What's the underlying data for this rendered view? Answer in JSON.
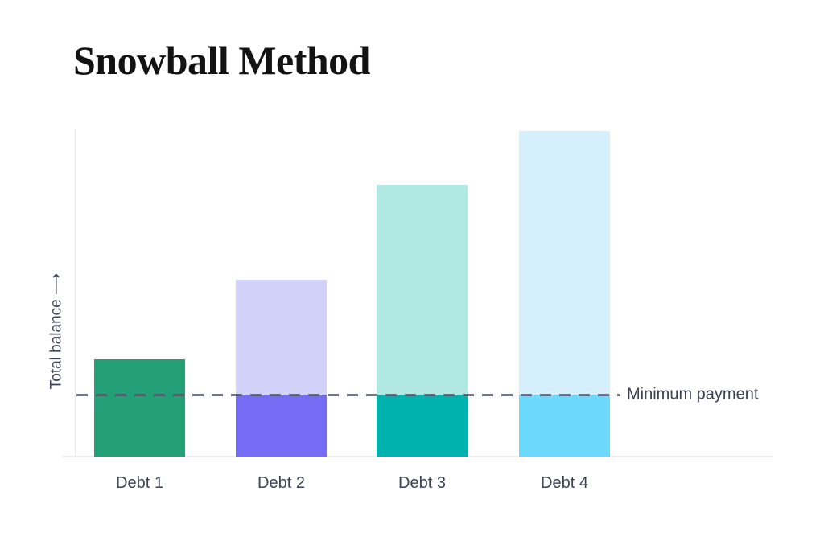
{
  "title": "Snowball Method",
  "colors": {
    "title_text": "#131313",
    "label_text": "#3d4154",
    "axis_line": "#ececec",
    "reference_line": "#4d5166",
    "background": "#ffffff"
  },
  "chart_data": {
    "type": "bar",
    "title": "Snowball Method",
    "xlabel": "",
    "ylabel": "Total balance ⟶",
    "categories": [
      "Debt 1",
      "Debt 2",
      "Debt 3",
      "Debt 4"
    ],
    "units": "relative balance, unlabeled axis; values estimated from bar heights with minimum-payment level = 77",
    "ylim": [
      0,
      440
    ],
    "grid": false,
    "legend": "none",
    "bars": [
      {
        "category": "Debt 1",
        "total": 121,
        "segments": [
          {
            "name": "balance (fully targeted)",
            "value": 121,
            "color": "#23a076"
          }
        ]
      },
      {
        "category": "Debt 2",
        "total": 220,
        "segments": [
          {
            "name": "minimum payment portion",
            "value": 77,
            "color": "#746cf3"
          },
          {
            "name": "remaining balance",
            "value": 143,
            "color": "#d2d2f8"
          }
        ]
      },
      {
        "category": "Debt 3",
        "total": 338,
        "segments": [
          {
            "name": "minimum payment portion",
            "value": 77,
            "color": "#00b2ae"
          },
          {
            "name": "remaining balance",
            "value": 261,
            "color": "#b2e8e2"
          }
        ]
      },
      {
        "category": "Debt 4",
        "total": 405,
        "segments": [
          {
            "name": "minimum payment portion",
            "value": 77,
            "color": "#6cd9fc"
          },
          {
            "name": "remaining balance",
            "value": 328,
            "color": "#d5f0fc"
          }
        ]
      }
    ],
    "reference_line": {
      "label": "Minimum payment",
      "value": 77,
      "style": "dashed"
    }
  }
}
